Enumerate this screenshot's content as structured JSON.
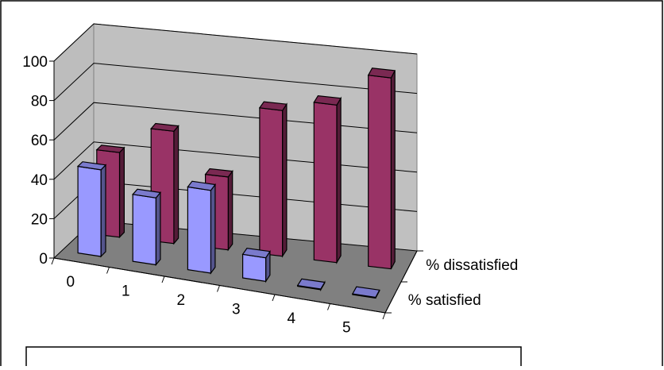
{
  "chart_data": {
    "type": "bar",
    "categories": [
      "0",
      "1",
      "2",
      "3",
      "4",
      "5"
    ],
    "series": [
      {
        "name": "% satisfied",
        "values": [
          44,
          34,
          42,
          12,
          0,
          0
        ],
        "color": "#9999ff"
      },
      {
        "name": "% dissatisfied",
        "values": [
          43,
          57,
          37,
          74,
          80,
          97
        ],
        "color": "#993366"
      }
    ],
    "y_ticks": [
      "0",
      "20",
      "40",
      "60",
      "80",
      "100"
    ],
    "ylim": [
      0,
      100
    ],
    "grid": true,
    "legend": "series-axis-right"
  }
}
